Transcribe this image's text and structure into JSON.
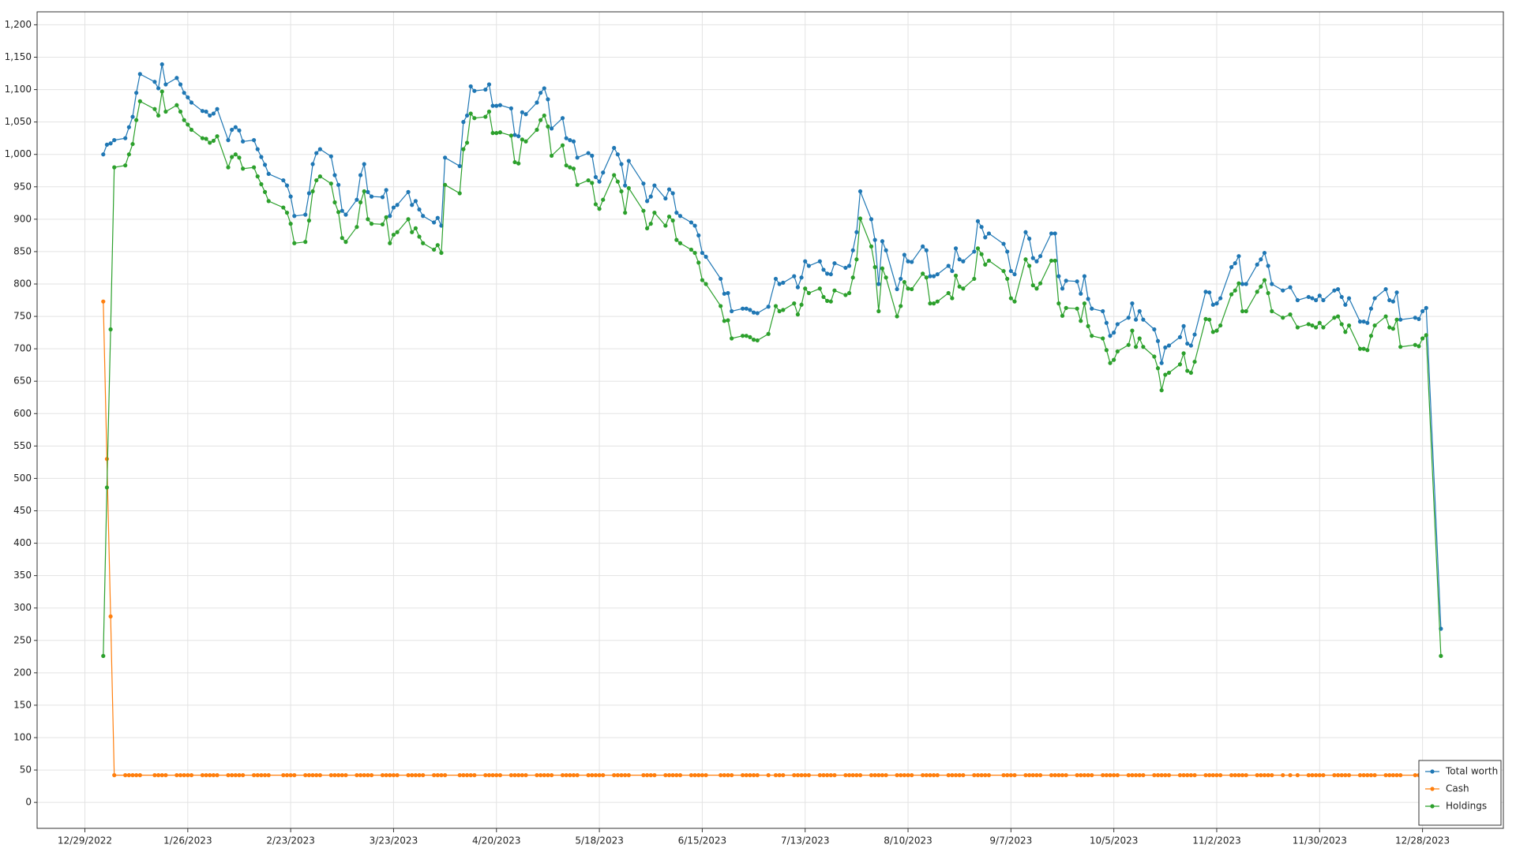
{
  "chart_data": {
    "type": "line",
    "x": [
      "1/3/2023",
      "1/4/2023",
      "1/5/2023",
      "1/6/2023",
      "1/9/2023",
      "1/10/2023",
      "1/11/2023",
      "1/12/2023",
      "1/13/2023",
      "1/17/2023",
      "1/18/2023",
      "1/19/2023",
      "1/20/2023",
      "1/23/2023",
      "1/24/2023",
      "1/25/2023",
      "1/26/2023",
      "1/27/2023",
      "1/30/2023",
      "1/31/2023",
      "2/1/2023",
      "2/2/2023",
      "2/3/2023",
      "2/6/2023",
      "2/7/2023",
      "2/8/2023",
      "2/9/2023",
      "2/10/2023",
      "2/13/2023",
      "2/14/2023",
      "2/15/2023",
      "2/16/2023",
      "2/17/2023",
      "2/21/2023",
      "2/22/2023",
      "2/23/2023",
      "2/24/2023",
      "2/27/2023",
      "2/28/2023",
      "3/1/2023",
      "3/2/2023",
      "3/3/2023",
      "3/6/2023",
      "3/7/2023",
      "3/8/2023",
      "3/9/2023",
      "3/10/2023",
      "3/13/2023",
      "3/14/2023",
      "3/15/2023",
      "3/16/2023",
      "3/17/2023",
      "3/20/2023",
      "3/21/2023",
      "3/22/2023",
      "3/23/2023",
      "3/24/2023",
      "3/27/2023",
      "3/28/2023",
      "3/29/2023",
      "3/30/2023",
      "3/31/2023",
      "4/3/2023",
      "4/4/2023",
      "4/5/2023",
      "4/6/2023",
      "4/10/2023",
      "4/11/2023",
      "4/12/2023",
      "4/13/2023",
      "4/14/2023",
      "4/17/2023",
      "4/18/2023",
      "4/19/2023",
      "4/20/2023",
      "4/21/2023",
      "4/24/2023",
      "4/25/2023",
      "4/26/2023",
      "4/27/2023",
      "4/28/2023",
      "5/1/2023",
      "5/2/2023",
      "5/3/2023",
      "5/4/2023",
      "5/5/2023",
      "5/8/2023",
      "5/9/2023",
      "5/10/2023",
      "5/11/2023",
      "5/12/2023",
      "5/15/2023",
      "5/16/2023",
      "5/17/2023",
      "5/18/2023",
      "5/19/2023",
      "5/22/2023",
      "5/23/2023",
      "5/24/2023",
      "5/25/2023",
      "5/26/2023",
      "5/30/2023",
      "5/31/2023",
      "6/1/2023",
      "6/2/2023",
      "6/5/2023",
      "6/6/2023",
      "6/7/2023",
      "6/8/2023",
      "6/9/2023",
      "6/12/2023",
      "6/13/2023",
      "6/14/2023",
      "6/15/2023",
      "6/16/2023",
      "6/20/2023",
      "6/21/2023",
      "6/22/2023",
      "6/23/2023",
      "6/26/2023",
      "6/27/2023",
      "6/28/2023",
      "6/29/2023",
      "6/30/2023",
      "7/3/2023",
      "7/5/2023",
      "7/6/2023",
      "7/7/2023",
      "7/10/2023",
      "7/11/2023",
      "7/12/2023",
      "7/13/2023",
      "7/14/2023",
      "7/17/2023",
      "7/18/2023",
      "7/19/2023",
      "7/20/2023",
      "7/21/2023",
      "7/24/2023",
      "7/25/2023",
      "7/26/2023",
      "7/27/2023",
      "7/28/2023",
      "7/31/2023",
      "8/1/2023",
      "8/2/2023",
      "8/3/2023",
      "8/4/2023",
      "8/7/2023",
      "8/8/2023",
      "8/9/2023",
      "8/10/2023",
      "8/11/2023",
      "8/14/2023",
      "8/15/2023",
      "8/16/2023",
      "8/17/2023",
      "8/18/2023",
      "8/21/2023",
      "8/22/2023",
      "8/23/2023",
      "8/24/2023",
      "8/25/2023",
      "8/28/2023",
      "8/29/2023",
      "8/30/2023",
      "8/31/2023",
      "9/1/2023",
      "9/5/2023",
      "9/6/2023",
      "9/7/2023",
      "9/8/2023",
      "9/11/2023",
      "9/12/2023",
      "9/13/2023",
      "9/14/2023",
      "9/15/2023",
      "9/18/2023",
      "9/19/2023",
      "9/20/2023",
      "9/21/2023",
      "9/22/2023",
      "9/25/2023",
      "9/26/2023",
      "9/27/2023",
      "9/28/2023",
      "9/29/2023",
      "10/2/2023",
      "10/3/2023",
      "10/4/2023",
      "10/5/2023",
      "10/6/2023",
      "10/9/2023",
      "10/10/2023",
      "10/11/2023",
      "10/12/2023",
      "10/13/2023",
      "10/16/2023",
      "10/17/2023",
      "10/18/2023",
      "10/19/2023",
      "10/20/2023",
      "10/23/2023",
      "10/24/2023",
      "10/25/2023",
      "10/26/2023",
      "10/27/2023",
      "10/30/2023",
      "10/31/2023",
      "11/1/2023",
      "11/2/2023",
      "11/3/2023",
      "11/6/2023",
      "11/7/2023",
      "11/8/2023",
      "11/9/2023",
      "11/10/2023",
      "11/13/2023",
      "11/14/2023",
      "11/15/2023",
      "11/16/2023",
      "11/17/2023",
      "11/20/2023",
      "11/22/2023",
      "11/24/2023",
      "11/27/2023",
      "11/28/2023",
      "11/29/2023",
      "11/30/2023",
      "12/1/2023",
      "12/4/2023",
      "12/5/2023",
      "12/6/2023",
      "12/7/2023",
      "12/8/2023",
      "12/11/2023",
      "12/12/2023",
      "12/13/2023",
      "12/14/2023",
      "12/15/2023",
      "12/18/2023",
      "12/19/2023",
      "12/20/2023",
      "12/21/2023",
      "12/22/2023",
      "12/26/2023",
      "12/27/2023",
      "12/28/2023",
      "12/29/2023",
      "1/2/2024"
    ],
    "series": [
      {
        "name": "Total worth",
        "color": "#1f77b4",
        "values": [
          1000,
          1015,
          1017,
          1022,
          1025,
          1042,
          1058,
          1095,
          1124,
          1112,
          1102,
          1139,
          1108,
          1118,
          1108,
          1095,
          1088,
          1080,
          1067,
          1066,
          1060,
          1063,
          1070,
          1022,
          1038,
          1042,
          1037,
          1020,
          1022,
          1008,
          996,
          984,
          970,
          960,
          952,
          935,
          905,
          907,
          940,
          985,
          1002,
          1008,
          997,
          968,
          953,
          913,
          907,
          930,
          968,
          985,
          942,
          935,
          934,
          945,
          905,
          918,
          922,
          942,
          922,
          928,
          915,
          905,
          895,
          902,
          890,
          995,
          982,
          1050,
          1060,
          1105,
          1098,
          1100,
          1108,
          1075,
          1075,
          1076,
          1071,
          1030,
          1028,
          1065,
          1062,
          1080,
          1095,
          1102,
          1085,
          1040,
          1056,
          1025,
          1022,
          1020,
          995,
          1002,
          998,
          965,
          958,
          972,
          1010,
          1000,
          985,
          952,
          990,
          955,
          928,
          935,
          952,
          932,
          946,
          940,
          910,
          905,
          895,
          890,
          875,
          848,
          842,
          808,
          785,
          786,
          758,
          762,
          762,
          760,
          756,
          755,
          765,
          808,
          800,
          802,
          812,
          795,
          810,
          835,
          828,
          835,
          822,
          816,
          815,
          832,
          825,
          828,
          852,
          880,
          943,
          900,
          868,
          800,
          866,
          852,
          792,
          808,
          845,
          835,
          834,
          858,
          852,
          812,
          812,
          815,
          828,
          820,
          855,
          838,
          835,
          850,
          897,
          888,
          872,
          878,
          862,
          850,
          820,
          815,
          880,
          870,
          840,
          835,
          843,
          878,
          878,
          812,
          793,
          805,
          804,
          785,
          812,
          777,
          762,
          758,
          740,
          720,
          725,
          738,
          748,
          770,
          745,
          758,
          745,
          730,
          712,
          678,
          702,
          705,
          718,
          735,
          708,
          705,
          722,
          788,
          787,
          768,
          770,
          778,
          826,
          832,
          843,
          800,
          800,
          830,
          838,
          848,
          828,
          800,
          790,
          795,
          775,
          780,
          778,
          775,
          782,
          775,
          790,
          792,
          780,
          768,
          778,
          742,
          742,
          740,
          762,
          778,
          792,
          775,
          773,
          787,
          745,
          748,
          746,
          758,
          763,
          268
        ]
      },
      {
        "name": "Cash",
        "color": "#ff7f0e",
        "values": [
          773,
          530,
          287,
          42,
          42,
          42,
          42,
          42,
          42,
          42,
          42,
          42,
          42,
          42,
          42,
          42,
          42,
          42,
          42,
          42,
          42,
          42,
          42,
          42,
          42,
          42,
          42,
          42,
          42,
          42,
          42,
          42,
          42,
          42,
          42,
          42,
          42,
          42,
          42,
          42,
          42,
          42,
          42,
          42,
          42,
          42,
          42,
          42,
          42,
          42,
          42,
          42,
          42,
          42,
          42,
          42,
          42,
          42,
          42,
          42,
          42,
          42,
          42,
          42,
          42,
          42,
          42,
          42,
          42,
          42,
          42,
          42,
          42,
          42,
          42,
          42,
          42,
          42,
          42,
          42,
          42,
          42,
          42,
          42,
          42,
          42,
          42,
          42,
          42,
          42,
          42,
          42,
          42,
          42,
          42,
          42,
          42,
          42,
          42,
          42,
          42,
          42,
          42,
          42,
          42,
          42,
          42,
          42,
          42,
          42,
          42,
          42,
          42,
          42,
          42,
          42,
          42,
          42,
          42,
          42,
          42,
          42,
          42,
          42,
          42,
          42,
          42,
          42,
          42,
          42,
          42,
          42,
          42,
          42,
          42,
          42,
          42,
          42,
          42,
          42,
          42,
          42,
          42,
          42,
          42,
          42,
          42,
          42,
          42,
          42,
          42,
          42,
          42,
          42,
          42,
          42,
          42,
          42,
          42,
          42,
          42,
          42,
          42,
          42,
          42,
          42,
          42,
          42,
          42,
          42,
          42,
          42,
          42,
          42,
          42,
          42,
          42,
          42,
          42,
          42,
          42,
          42,
          42,
          42,
          42,
          42,
          42,
          42,
          42,
          42,
          42,
          42,
          42,
          42,
          42,
          42,
          42,
          42,
          42,
          42,
          42,
          42,
          42,
          42,
          42,
          42,
          42,
          42,
          42,
          42,
          42,
          42,
          42,
          42,
          42,
          42,
          42,
          42,
          42,
          42,
          42,
          42,
          42,
          42,
          42,
          42,
          42,
          42,
          42,
          42,
          42,
          42,
          42,
          42,
          42,
          42,
          42,
          42,
          42,
          42,
          42,
          42,
          42,
          42,
          42,
          42,
          42,
          42,
          42,
          42
        ]
      },
      {
        "name": "Holdings",
        "color": "#2ca02c",
        "values": [
          226,
          486,
          730,
          980,
          983,
          1000,
          1016,
          1053,
          1082,
          1070,
          1060,
          1097,
          1066,
          1076,
          1066,
          1053,
          1046,
          1038,
          1025,
          1024,
          1018,
          1021,
          1028,
          980,
          996,
          1000,
          995,
          978,
          980,
          966,
          954,
          942,
          928,
          918,
          910,
          893,
          863,
          865,
          898,
          943,
          960,
          966,
          955,
          926,
          911,
          871,
          865,
          888,
          926,
          943,
          900,
          893,
          892,
          903,
          863,
          876,
          880,
          900,
          880,
          886,
          873,
          863,
          853,
          860,
          848,
          953,
          940,
          1008,
          1018,
          1063,
          1056,
          1058,
          1066,
          1033,
          1033,
          1034,
          1029,
          988,
          986,
          1023,
          1020,
          1038,
          1053,
          1060,
          1043,
          998,
          1014,
          983,
          980,
          978,
          953,
          960,
          956,
          923,
          916,
          930,
          968,
          958,
          943,
          910,
          948,
          913,
          886,
          893,
          910,
          890,
          904,
          898,
          868,
          863,
          853,
          848,
          833,
          806,
          800,
          766,
          743,
          744,
          716,
          720,
          720,
          718,
          714,
          713,
          723,
          766,
          758,
          760,
          770,
          753,
          768,
          793,
          786,
          793,
          780,
          774,
          773,
          790,
          783,
          786,
          810,
          838,
          901,
          858,
          826,
          758,
          824,
          810,
          750,
          766,
          803,
          793,
          792,
          816,
          810,
          770,
          770,
          773,
          786,
          778,
          813,
          796,
          793,
          808,
          855,
          846,
          830,
          836,
          820,
          808,
          778,
          773,
          838,
          828,
          798,
          793,
          801,
          836,
          836,
          770,
          751,
          763,
          762,
          743,
          770,
          735,
          720,
          716,
          698,
          678,
          683,
          696,
          706,
          728,
          703,
          716,
          703,
          688,
          670,
          636,
          660,
          663,
          676,
          693,
          666,
          663,
          680,
          746,
          745,
          726,
          728,
          736,
          784,
          790,
          801,
          758,
          758,
          788,
          796,
          806,
          786,
          758,
          748,
          753,
          733,
          738,
          736,
          733,
          740,
          733,
          748,
          750,
          738,
          726,
          736,
          700,
          700,
          698,
          720,
          736,
          750,
          733,
          731,
          745,
          703,
          706,
          704,
          716,
          721,
          226
        ]
      }
    ],
    "xlim": [
      "12/16/2022",
      "1/19/2024"
    ],
    "xticks": [
      "12/29/2022",
      "1/26/2023",
      "2/23/2023",
      "3/23/2023",
      "4/20/2023",
      "5/18/2023",
      "6/15/2023",
      "7/13/2023",
      "8/10/2023",
      "9/7/2023",
      "10/5/2023",
      "11/2/2023",
      "11/30/2023",
      "12/28/2023"
    ],
    "ylim": [
      -40,
      1220
    ],
    "yticks": [
      0,
      50,
      100,
      150,
      200,
      250,
      300,
      350,
      400,
      450,
      500,
      550,
      600,
      650,
      700,
      750,
      800,
      850,
      900,
      950,
      {
        "value": 1000,
        "label": "1,000"
      },
      {
        "value": 1050,
        "label": "1,050"
      },
      {
        "value": 1100,
        "label": "1,100"
      },
      {
        "value": 1150,
        "label": "1,150"
      },
      {
        "value": 1200,
        "label": "1,200"
      }
    ],
    "grid": true,
    "legend": "lower right"
  }
}
